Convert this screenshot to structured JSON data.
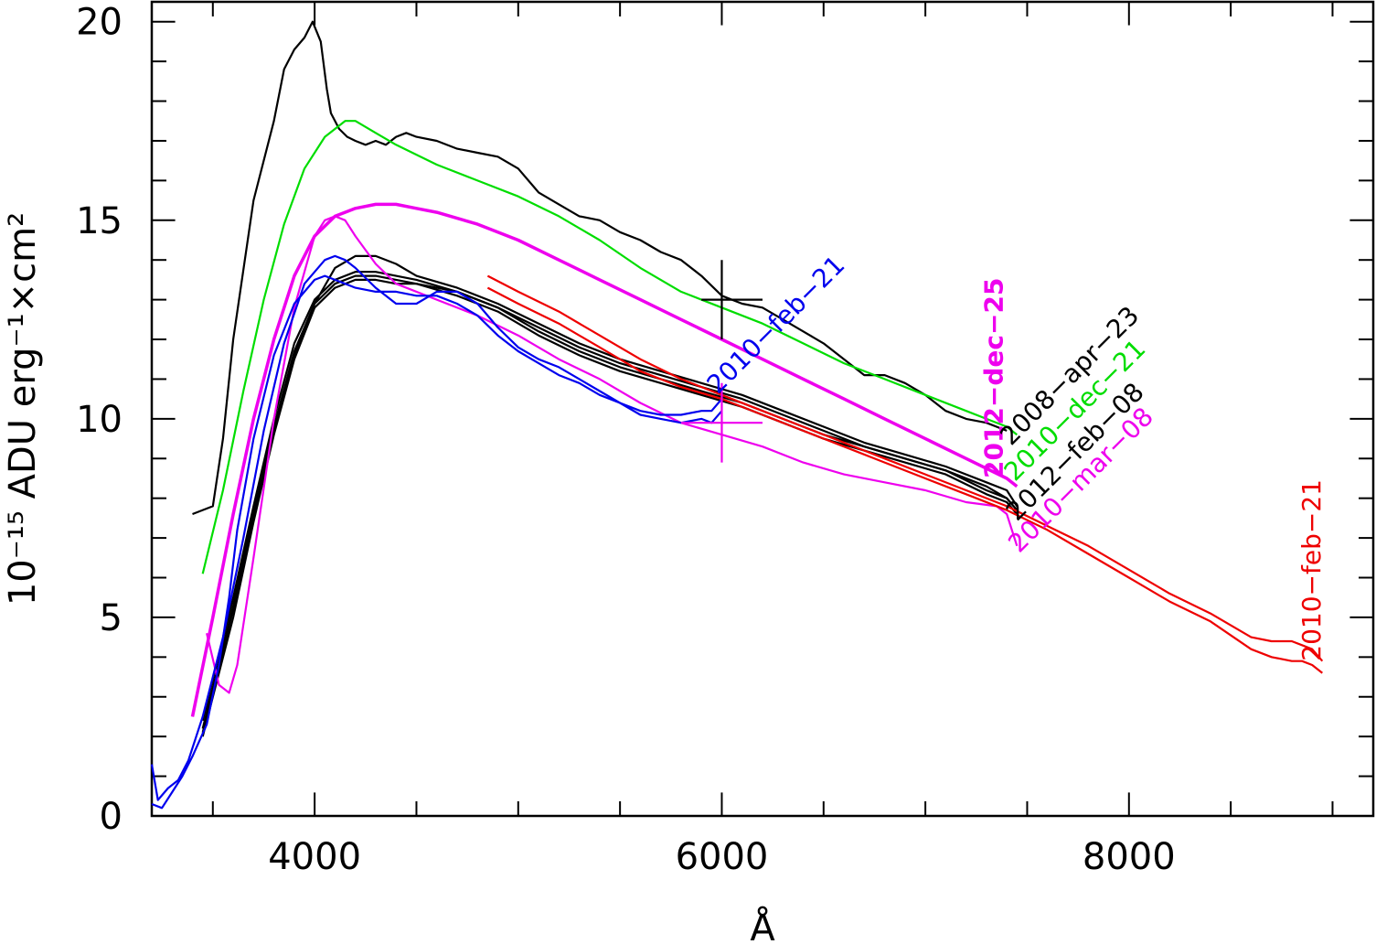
{
  "chart_data": {
    "type": "line",
    "xlabel": "Å",
    "ylabel": "10⁻¹⁵ ADU erg⁻¹×cm²",
    "xlim": [
      3200,
      9200
    ],
    "ylim": [
      0,
      20.5
    ],
    "x_ticks": [
      4000,
      6000,
      8000
    ],
    "x_tick_labels": [
      "4000",
      "6000",
      "8000"
    ],
    "y_ticks": [
      0,
      5,
      10,
      15,
      20
    ],
    "y_tick_labels": [
      "0",
      "5",
      "10",
      "15",
      "20"
    ],
    "grid": false,
    "colors": {
      "black": "#000000",
      "green": "#00dd00",
      "magenta": "#ee00ee",
      "blue": "#0000ee",
      "red": "#ee0000"
    },
    "series": [
      {
        "color": "#000000",
        "width": 2.2,
        "x": [
          3400,
          3500,
          3550,
          3600,
          3700,
          3800,
          3850,
          3900,
          3950,
          3990,
          4030,
          4060,
          4080,
          4120,
          4160,
          4200,
          4250,
          4300,
          4350,
          4400,
          4450,
          4500,
          4600,
          4700,
          4800,
          4900,
          5000,
          5100,
          5200,
          5300,
          5400,
          5500,
          5600,
          5700,
          5800,
          5900,
          6000,
          6100,
          6200,
          6300,
          6400,
          6500,
          6600,
          6700,
          6800,
          6900,
          7000,
          7100,
          7200,
          7300,
          7400
        ],
        "y": [
          7.6,
          7.8,
          9.5,
          12.0,
          15.5,
          17.5,
          18.8,
          19.3,
          19.6,
          20.0,
          19.5,
          18.3,
          17.7,
          17.3,
          17.1,
          17.0,
          16.9,
          17.0,
          16.9,
          17.1,
          17.2,
          17.1,
          17.0,
          16.8,
          16.7,
          16.6,
          16.3,
          15.7,
          15.4,
          15.1,
          15.0,
          14.7,
          14.5,
          14.2,
          14.0,
          13.6,
          13.1,
          12.9,
          12.8,
          12.5,
          12.2,
          11.9,
          11.5,
          11.1,
          11.1,
          10.9,
          10.6,
          10.2,
          10.0,
          9.9,
          9.7
        ]
      },
      {
        "color": "#000000",
        "width": 2.2,
        "x": [
          3450,
          3600,
          3700,
          3800,
          3900,
          4000,
          4100,
          4200,
          4300,
          4400,
          4500,
          4700,
          4900,
          5100,
          5300,
          5500,
          5700,
          5900,
          6100,
          6300,
          6500,
          6700,
          6900,
          7100,
          7300,
          7400,
          7450
        ],
        "y": [
          2.1,
          5.2,
          7.5,
          9.7,
          11.6,
          12.9,
          13.8,
          14.1,
          14.1,
          13.9,
          13.6,
          13.3,
          12.9,
          12.4,
          11.9,
          11.5,
          11.2,
          10.9,
          10.6,
          10.2,
          9.8,
          9.4,
          9.1,
          8.8,
          8.4,
          8.2,
          7.8
        ]
      },
      {
        "color": "#000000",
        "width": 2.2,
        "x": [
          3450,
          3600,
          3700,
          3800,
          3900,
          4000,
          4100,
          4200,
          4300,
          4400,
          4500,
          4700,
          4900,
          5100,
          5300,
          5500,
          5700,
          5900,
          6100,
          6300,
          6500,
          6700,
          6900,
          7100,
          7300,
          7400,
          7450
        ],
        "y": [
          2.4,
          5.5,
          7.8,
          10.0,
          11.9,
          13.0,
          13.5,
          13.7,
          13.7,
          13.6,
          13.5,
          13.2,
          12.8,
          12.2,
          11.7,
          11.3,
          11.0,
          10.7,
          10.4,
          10.0,
          9.6,
          9.3,
          9.0,
          8.7,
          8.3,
          8.0,
          7.7
        ]
      },
      {
        "color": "#000000",
        "width": 2.2,
        "x": [
          3450,
          3600,
          3700,
          3800,
          3900,
          4000,
          4100,
          4200,
          4300,
          4400,
          4500,
          4700,
          4900,
          5100,
          5300,
          5500,
          5700,
          5900,
          6100,
          6300,
          6500,
          6700,
          6900,
          7100,
          7300,
          7400,
          7450
        ],
        "y": [
          2.0,
          5.0,
          7.4,
          9.6,
          11.5,
          12.8,
          13.3,
          13.5,
          13.5,
          13.4,
          13.4,
          13.1,
          12.7,
          12.1,
          11.6,
          11.2,
          10.9,
          10.6,
          10.3,
          9.9,
          9.5,
          9.2,
          8.9,
          8.6,
          8.1,
          7.9,
          7.6
        ]
      },
      {
        "color": "#000000",
        "width": 2.2,
        "x": [
          3450,
          3600,
          3700,
          3800,
          3900,
          4000,
          4100,
          4200,
          4300,
          4400,
          4500,
          4700,
          4900,
          5100,
          5300,
          5500,
          5700,
          5900,
          6100,
          6300,
          6500,
          6700,
          6900,
          7100,
          7300,
          7400,
          7450
        ],
        "y": [
          2.2,
          5.3,
          7.6,
          9.8,
          11.7,
          12.9,
          13.4,
          13.6,
          13.6,
          13.5,
          13.4,
          13.2,
          12.8,
          12.3,
          11.8,
          11.4,
          11.1,
          10.8,
          10.5,
          10.1,
          9.7,
          9.3,
          9.0,
          8.7,
          8.2,
          8.0,
          7.7
        ]
      },
      {
        "color": "#00dd00",
        "width": 2.2,
        "x": [
          3450,
          3550,
          3650,
          3750,
          3850,
          3950,
          4050,
          4150,
          4200,
          4300,
          4400,
          4600,
          4800,
          5000,
          5200,
          5400,
          5600,
          5800,
          6000,
          6200,
          6400,
          6600,
          6800,
          7000,
          7200,
          7300,
          7400,
          7450
        ],
        "y": [
          6.1,
          8.2,
          10.7,
          13.0,
          14.9,
          16.3,
          17.1,
          17.5,
          17.5,
          17.2,
          16.9,
          16.4,
          16.0,
          15.6,
          15.1,
          14.5,
          13.8,
          13.2,
          12.8,
          12.4,
          11.9,
          11.4,
          11.0,
          10.6,
          10.2,
          10.0,
          9.8,
          9.6
        ]
      },
      {
        "color": "#ee00ee",
        "width": 3.5,
        "x": [
          3400,
          3500,
          3600,
          3700,
          3800,
          3900,
          4000,
          4100,
          4200,
          4300,
          4400,
          4500,
          4600,
          4800,
          5000,
          5200,
          5400,
          5600,
          5800,
          6000,
          6200,
          6400,
          6600,
          6800,
          7000,
          7200,
          7400,
          7450
        ],
        "y": [
          2.5,
          5.0,
          7.6,
          10.0,
          12.0,
          13.6,
          14.6,
          15.1,
          15.3,
          15.4,
          15.4,
          15.3,
          15.2,
          14.9,
          14.5,
          14.0,
          13.5,
          13.0,
          12.5,
          12.0,
          11.5,
          11.0,
          10.5,
          10.0,
          9.5,
          9.0,
          8.5,
          8.3
        ]
      },
      {
        "color": "#ee00ee",
        "width": 2.2,
        "x": [
          3470,
          3530,
          3580,
          3620,
          3700,
          3800,
          3900,
          4000,
          4050,
          4100,
          4150,
          4200,
          4300,
          4400,
          4600,
          4800,
          5000,
          5200,
          5400,
          5600,
          5800,
          6000,
          6200,
          6400,
          6600,
          6800,
          7000,
          7200,
          7350,
          7400,
          7450
        ],
        "y": [
          4.6,
          3.3,
          3.1,
          3.8,
          6.5,
          10.0,
          12.8,
          14.6,
          15.0,
          15.1,
          15.0,
          14.6,
          13.9,
          13.4,
          13.0,
          12.6,
          12.1,
          11.5,
          11.0,
          10.4,
          9.9,
          9.6,
          9.3,
          8.9,
          8.6,
          8.4,
          8.2,
          7.9,
          7.8,
          7.6,
          6.8
        ]
      },
      {
        "color": "#0000ee",
        "width": 2.2,
        "x": [
          3200,
          3230,
          3280,
          3330,
          3380,
          3450,
          3550,
          3650,
          3750,
          3850,
          3950,
          4050,
          4100,
          4150,
          4200,
          4300,
          4400,
          4500,
          4600,
          4700,
          4800,
          4900,
          5000,
          5100,
          5200,
          5300,
          5400,
          5500,
          5600,
          5700,
          5800,
          5900,
          5950,
          6000
        ],
        "y": [
          1.3,
          0.4,
          0.7,
          0.9,
          1.4,
          2.5,
          4.5,
          7.0,
          9.7,
          11.9,
          13.4,
          14.0,
          14.1,
          14.0,
          13.8,
          13.3,
          12.9,
          12.9,
          13.2,
          13.2,
          12.9,
          12.3,
          11.8,
          11.5,
          11.3,
          11.0,
          10.7,
          10.4,
          10.1,
          10.0,
          9.9,
          10.0,
          9.9,
          10.2
        ]
      },
      {
        "color": "#0000ee",
        "width": 2.2,
        "x": [
          3200,
          3250,
          3300,
          3350,
          3400,
          3470,
          3530,
          3580,
          3620,
          3700,
          3800,
          3900,
          4000,
          4050,
          4100,
          4150,
          4200,
          4300,
          4400,
          4500,
          4600,
          4700,
          4800,
          4900,
          5000,
          5100,
          5200,
          5300,
          5400,
          5500,
          5600,
          5700,
          5800,
          5900,
          5950,
          6000
        ],
        "y": [
          0.3,
          0.2,
          0.6,
          1.0,
          1.5,
          2.3,
          3.8,
          5.5,
          7.2,
          9.5,
          11.6,
          12.9,
          13.5,
          13.6,
          13.5,
          13.4,
          13.3,
          13.2,
          13.2,
          13.1,
          13.1,
          12.9,
          12.6,
          12.1,
          11.7,
          11.4,
          11.1,
          10.9,
          10.6,
          10.4,
          10.2,
          10.1,
          10.1,
          10.2,
          10.2,
          10.5
        ]
      },
      {
        "color": "#ee0000",
        "width": 2.2,
        "x": [
          4850,
          5000,
          5200,
          5400,
          5600,
          5800,
          6000,
          6200,
          6400,
          6600,
          6800,
          7000,
          7200,
          7400,
          7600,
          7800,
          8000,
          8200,
          8400,
          8600,
          8700,
          8800,
          8850,
          8900,
          8950
        ],
        "y": [
          13.6,
          13.2,
          12.7,
          12.1,
          11.5,
          11.0,
          10.6,
          10.2,
          9.8,
          9.4,
          9.0,
          8.6,
          8.2,
          7.8,
          7.3,
          6.8,
          6.2,
          5.6,
          5.1,
          4.5,
          4.4,
          4.4,
          4.3,
          4.2,
          3.9
        ]
      },
      {
        "color": "#ee0000",
        "width": 2.2,
        "x": [
          4850,
          5000,
          5200,
          5400,
          5600,
          5800,
          6000,
          6200,
          6400,
          6600,
          6800,
          7000,
          7200,
          7400,
          7600,
          7800,
          8000,
          8200,
          8400,
          8600,
          8700,
          8800,
          8850,
          8900,
          8950
        ],
        "y": [
          13.3,
          12.9,
          12.4,
          11.8,
          11.2,
          10.8,
          10.5,
          10.1,
          9.7,
          9.3,
          8.9,
          8.5,
          8.1,
          7.7,
          7.2,
          6.6,
          6.0,
          5.4,
          4.9,
          4.2,
          4.0,
          3.9,
          3.9,
          3.8,
          3.6
        ]
      }
    ],
    "markers": [
      {
        "color": "#000000",
        "x": 6000,
        "y": 13.0,
        "x_extent": [
          5900,
          6200
        ],
        "y_extent": [
          12.0,
          14.0
        ]
      },
      {
        "color": "#ee00ee",
        "x": 6000,
        "y": 9.9,
        "x_extent": [
          5800,
          6200
        ],
        "y_extent": [
          8.9,
          10.9
        ]
      }
    ],
    "annotations": [
      {
        "text": "2010−feb−21",
        "color": "#0000ee",
        "x": 5980,
        "y": 10.6,
        "angle": -45,
        "bold": false
      },
      {
        "text": "2012−dec−25",
        "color": "#ee00ee",
        "x": 7380,
        "y": 8.5,
        "angle": -90,
        "bold": true
      },
      {
        "text": "2008−apr−23",
        "color": "#000000",
        "x": 7420,
        "y": 9.3,
        "angle": -45,
        "bold": false
      },
      {
        "text": "2010−dec−21",
        "color": "#00dd00",
        "x": 7440,
        "y": 8.4,
        "angle": -45,
        "bold": false
      },
      {
        "text": "2012−feb−08",
        "color": "#000000",
        "x": 7450,
        "y": 7.4,
        "angle": -45,
        "bold": false
      },
      {
        "text": "2010−mar−08",
        "color": "#ee00ee",
        "x": 7460,
        "y": 6.6,
        "angle": -45,
        "bold": false
      },
      {
        "text": "2010−feb−21",
        "color": "#ee0000",
        "x": 8940,
        "y": 3.9,
        "angle": -90,
        "bold": false
      }
    ]
  }
}
